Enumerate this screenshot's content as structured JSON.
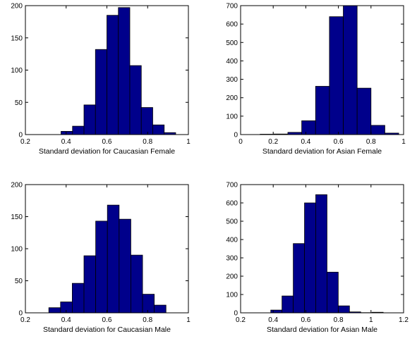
{
  "chart_data": [
    {
      "type": "bar",
      "xlabel": "Standard deviation for Caucasian Female",
      "xlim": [
        0.2,
        1
      ],
      "ylim": [
        0,
        200
      ],
      "xticks": [
        0.2,
        0.4,
        0.6,
        0.8,
        1
      ],
      "xtick_labels": [
        "0.2",
        "0.4",
        "0.6",
        "0.8",
        "1"
      ],
      "yticks": [
        0,
        50,
        100,
        150,
        200
      ],
      "yticklabels": [
        "0",
        "50",
        "100",
        "150",
        "200"
      ],
      "bin_edges": [
        0.375,
        0.4313,
        0.4875,
        0.5438,
        0.6,
        0.6563,
        0.7125,
        0.7688,
        0.825,
        0.8813,
        0.9375
      ],
      "values": [
        5,
        13,
        46,
        132,
        185,
        197,
        107,
        42,
        15,
        3
      ],
      "bar_color": "#00008b",
      "edge_color": "#000000"
    },
    {
      "type": "bar",
      "xlabel": "Standard deviation for Asian Female",
      "xlim": [
        0,
        1
      ],
      "ylim": [
        0,
        700
      ],
      "xticks": [
        0,
        0.2,
        0.4,
        0.6,
        0.8,
        1
      ],
      "xtick_labels": [
        "0",
        "0.2",
        "0.4",
        "0.6",
        "0.8",
        "1"
      ],
      "yticks": [
        0,
        100,
        200,
        300,
        400,
        500,
        600,
        700
      ],
      "yticklabels": [
        "0",
        "100",
        "200",
        "300",
        "400",
        "500",
        "600",
        "700"
      ],
      "bin_edges": [
        0.12,
        0.205,
        0.29,
        0.375,
        0.46,
        0.545,
        0.63,
        0.715,
        0.8,
        0.885,
        0.97
      ],
      "values": [
        2,
        3,
        12,
        75,
        262,
        640,
        700,
        252,
        50,
        8
      ],
      "bar_color": "#00008b",
      "edge_color": "#000000"
    },
    {
      "type": "bar",
      "xlabel": "Standard deviation for Caucasian Male",
      "xlim": [
        0.2,
        1
      ],
      "ylim": [
        0,
        200
      ],
      "xticks": [
        0.2,
        0.4,
        0.6,
        0.8,
        1
      ],
      "xtick_labels": [
        "0.2",
        "0.4",
        "0.6",
        "0.8",
        "1"
      ],
      "yticks": [
        0,
        50,
        100,
        150,
        200
      ],
      "yticklabels": [
        "0",
        "50",
        "100",
        "150",
        "200"
      ],
      "bin_edges": [
        0.315,
        0.3725,
        0.43,
        0.4875,
        0.545,
        0.6025,
        0.66,
        0.7175,
        0.775,
        0.8325,
        0.89
      ],
      "values": [
        8,
        17,
        46,
        89,
        143,
        168,
        146,
        90,
        29,
        12
      ],
      "bar_color": "#00008b",
      "edge_color": "#000000"
    },
    {
      "type": "bar",
      "xlabel": "Standard deviation for Asian Male",
      "xlim": [
        0.2,
        1.2
      ],
      "ylim": [
        0,
        700
      ],
      "xticks": [
        0.2,
        0.4,
        0.6,
        0.8,
        1,
        1.2
      ],
      "xtick_labels": [
        "0.2",
        "0.4",
        "0.6",
        "0.8",
        "1",
        "1.2"
      ],
      "yticks": [
        0,
        100,
        200,
        300,
        400,
        500,
        600,
        700
      ],
      "yticklabels": [
        "0",
        "100",
        "200",
        "300",
        "400",
        "500",
        "600",
        "700"
      ],
      "bin_edges": [
        0.385,
        0.454,
        0.523,
        0.592,
        0.661,
        0.73,
        0.799,
        0.868,
        0.937,
        1.006,
        1.075
      ],
      "values": [
        15,
        92,
        378,
        600,
        645,
        222,
        38,
        5,
        1,
        3
      ],
      "bar_color": "#00008b",
      "edge_color": "#000000"
    }
  ]
}
